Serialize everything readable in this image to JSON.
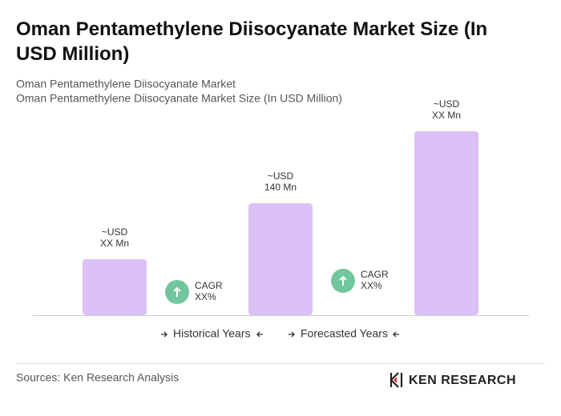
{
  "chart_data": {
    "type": "bar",
    "title": [
      "Oman Pentamethylene Diisocyanate Market Size (In",
      "USD Million)"
    ],
    "subtitle": [
      "Oman Pentamethylene Diisocyanate Market",
      "Oman Pentamethylene Diisocyanate Market Size (In USD Million)"
    ],
    "categories": [
      null,
      null,
      null
    ],
    "values": [
      70,
      140,
      230
    ],
    "value_labels": [
      [
        "~USD",
        "XX Mn"
      ],
      [
        "~USD",
        "140 Mn"
      ],
      [
        "~USD",
        "XX Mn"
      ]
    ],
    "color": "#dcc1f7",
    "ylim": [
      0,
      230
    ],
    "cagr": [
      [
        "CAGR",
        "XX%"
      ],
      [
        "CAGR",
        "XX%"
      ]
    ],
    "cagr_color": "#72c69d",
    "periods": [
      "Historical Years",
      "Forecasted Years"
    ],
    "source": "Sources: Ken Research Analysis",
    "brand": "KEN RESEARCH"
  }
}
